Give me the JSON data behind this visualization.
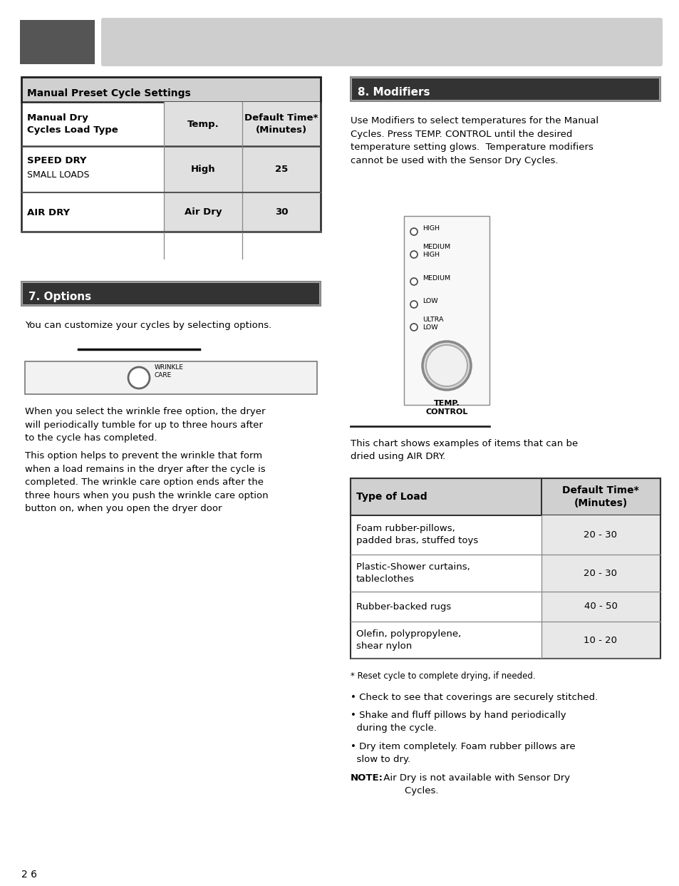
{
  "page_bg": "#ffffff",
  "header_dark_box_color": "#555555",
  "header_light_bar_color": "#cecece",
  "section7_header_text": "7. Options",
  "section8_header_text": "8. Modifiers",
  "section7_header_bg": "#333333",
  "section8_header_bg": "#333333",
  "table1_title": "Manual Preset Cycle Settings",
  "table1_col1_header": "Manual Dry\nCycles Load Type",
  "table1_col2_header": "Temp.",
  "table1_col3_header": "Default Time*\n(Minutes)",
  "table1_rows": [
    [
      "SPEED DRY\nSMALL LOADS",
      "High",
      "25"
    ],
    [
      "AIR DRY",
      "Air Dry",
      "30"
    ]
  ],
  "table2_title_col1": "Type of Load",
  "table2_title_col2": "Default Time*\n(Minutes)",
  "table2_rows": [
    [
      "Foam rubber-pillows,\npadded bras, stuffed toys",
      "20 - 30"
    ],
    [
      "Plastic-Shower curtains,\ntableclothes",
      "20 - 30"
    ],
    [
      "Rubber-backed rugs",
      "40 - 50"
    ],
    [
      "Olefin, polypropylene,\nshear nylon",
      "10 - 20"
    ]
  ],
  "options_text": "You can customize your cycles by selecting options.",
  "modifiers_text": "Use Modifiers to select temperatures for the Manual\nCycles. Press TEMP. CONTROL until the desired\ntemperature setting glows.  Temperature modifiers\ncannot be used with the Sensor Dry Cycles.",
  "chart_text": "This chart shows examples of items that can be\ndried using AIR DRY.",
  "wrinkle_paragraph1": "When you select the wrinkle free option, the dryer\nwill periodically tumble for up to three hours after\nto the cycle has completed.",
  "wrinkle_paragraph2": "This option helps to prevent the wrinkle that form\nwhen a load remains in the dryer after the cycle is\ncompleted. The wrinkle care option ends after the\nthree hours when you push the wrinkle care option\nbutton on, when you open the dryer door",
  "footnote": "* Reset cycle to complete drying, if needed.",
  "bullet1": "• Check to see that coverings are securely stitched.",
  "bullet2": "• Shake and fluff pillows by hand periodically\n  during the cycle.",
  "bullet3": "• Dry item completely. Foam rubber pillows are\n  slow to dry.",
  "note_label": "NOTE:",
  "note_text": " Air Dry is not available with Sensor Dry\n        Cycles.",
  "temp_labels": [
    "HIGH",
    "MEDIUM\nHIGH",
    "MEDIUM",
    "LOW",
    "ULTRA\nLOW"
  ],
  "temp_control_label": "TEMP.\nCONTROL",
  "page_number": "2 6",
  "table_header_bg": "#d0d0d0",
  "table_mid_bg": "#e0e0e0",
  "table2_row_bg": "#e8e8e8"
}
